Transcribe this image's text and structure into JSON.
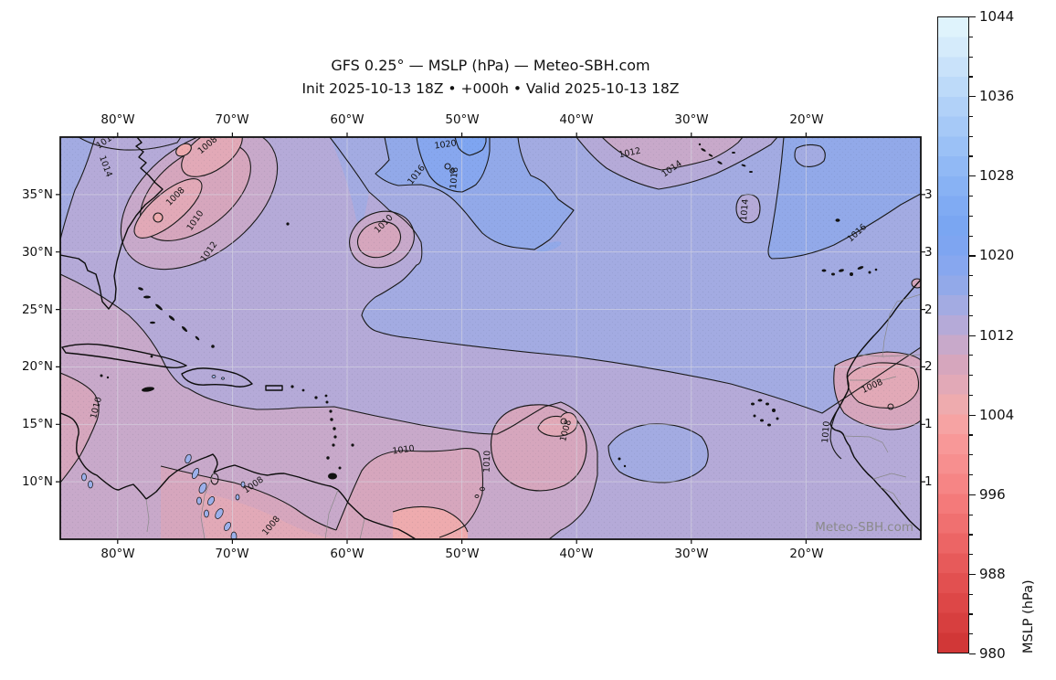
{
  "title": {
    "line1": "GFS 0.25° — MSLP (hPa) — Meteo-SBH.com",
    "line2": "Init 2025-10-13 18Z • +000h • Valid 2025-10-13 18Z"
  },
  "axes": {
    "x_tick_labels": [
      "80°W",
      "70°W",
      "60°W",
      "50°W",
      "40°W",
      "30°W",
      "20°W"
    ],
    "y_tick_labels": [
      "35°N",
      "30°N",
      "25°N",
      "20°N",
      "15°N",
      "10°N"
    ],
    "right_tick_labels_clipped": [
      "3",
      "3",
      "2",
      "2",
      "1",
      "1"
    ]
  },
  "colorbar": {
    "label": "MSLP (hPa)",
    "vmin": 980,
    "vmax": 1044,
    "tick_step": 8,
    "minor_step": 2,
    "tick_labels": [
      "1044",
      "1036",
      "1028",
      "1020",
      "1012",
      "1004",
      "996",
      "988",
      "980"
    ],
    "band_colors": [
      "#d13737",
      "#d73f3f",
      "#dd4747",
      "#e25050",
      "#e75a5a",
      "#ec6565",
      "#f07070",
      "#f47a7a",
      "#f68585",
      "#f78f8f",
      "#f89898",
      "#f6a3a3",
      "#eeabae",
      "#e2a9b7",
      "#d6a6bd",
      "#c8a9ca",
      "#b5aad8",
      "#a3abe2",
      "#92a9e9",
      "#87a7ef",
      "#7ea5f1",
      "#7aa6f2",
      "#80abf3",
      "#88b2f4",
      "#91b9f5",
      "#9bc1f6",
      "#a6c9f7",
      "#b1d1f8",
      "#bddaf9",
      "#c9e2fa",
      "#d5ebfb",
      "#dff3fc"
    ]
  },
  "map": {
    "watermark": "Meteo-SBH.com",
    "contour_labels": [
      "1010",
      "1014",
      "1008",
      "1008",
      "1010",
      "1012",
      "1016",
      "1018",
      "1020",
      "1010",
      "1012",
      "1014",
      "1014",
      "1016",
      "1010",
      "1008",
      "1008",
      "1010",
      "1010",
      "1008",
      "1008",
      "1010"
    ]
  },
  "chart_data": {
    "type": "contour-map",
    "variable": "MSLP (hPa)",
    "model": "GFS 0.25°",
    "init": "2025-10-13 18Z",
    "forecast_hour": "+000h",
    "valid": "2025-10-13 18Z",
    "lon_range_deg_w": [
      85,
      10
    ],
    "lat_range_deg_n": [
      5,
      40
    ],
    "contour_interval_hpa": 2,
    "labeled_contours_hpa": [
      1008,
      1010,
      1012,
      1014,
      1016,
      1018,
      1020
    ],
    "colorbar_range_hpa": [
      980,
      1044
    ],
    "visible_features": [
      {
        "kind": "low",
        "approx_lon_w": 75,
        "approx_lat_n": 34,
        "closed_contour_hpa": 1008
      },
      {
        "kind": "low",
        "approx_lon_w": 57.5,
        "approx_lat_n": 31,
        "closed_contour_hpa": 1010
      },
      {
        "kind": "low",
        "approx_lon_w": 41,
        "approx_lat_n": 15,
        "closed_contour_hpa": 1008
      },
      {
        "kind": "low",
        "approx_lon_w": 14,
        "approx_lat_n": 18,
        "closed_contour_hpa": 1008
      },
      {
        "kind": "high-ridge",
        "approx_lon_w": 51,
        "approx_lat_n": 39,
        "closed_contour_hpa": 1020
      },
      {
        "kind": "high-area",
        "approx_lon_w": 15,
        "approx_lat_n": 31,
        "contour_hpa": 1016
      }
    ]
  }
}
